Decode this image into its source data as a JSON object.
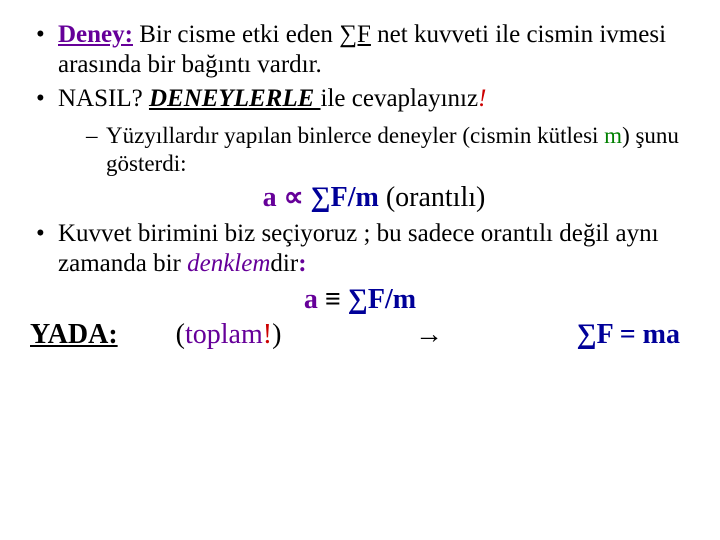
{
  "colors": {
    "purple": "#660099",
    "red": "#cc0000",
    "green": "#008000",
    "navy": "#000099",
    "black": "#000000"
  },
  "bullet1": {
    "deney_label": "Deney:",
    "part1": " Bir cisme etki eden ",
    "sigmaF": "∑F",
    "part2": " net kuvveti ile cismin ivmesi arasında bir bağıntı vardır."
  },
  "bullet2": {
    "nasil": "NASIL? ",
    "deneylerle": "DENEYLERLE ",
    "ile": "ile cevaplayınız",
    "bang": "!"
  },
  "subbullet": {
    "part1": "Yüzyıllardır yapılan binlerce deneyler ",
    "paren_open": "(cismin kütlesi ",
    "m": "m",
    "paren_close": ") ",
    "part2": "şunu gösterdi:"
  },
  "eq1": {
    "a": "a",
    "prop": " ∝ ",
    "sigmaFm": "∑F/m",
    "orantili": "   (orantılı)"
  },
  "bullet3": {
    "text1": "Kuvvet birimini biz seçiyoruz ; bu sadece orantılı değil aynı zamanda bir  ",
    "denklem": "denklem",
    "dir": "dir",
    "colon": ":"
  },
  "eq2": {
    "a": "a",
    "equiv": " ≡ ",
    "sigmaFm": "∑F/m"
  },
  "lastline": {
    "yada": "YADA:",
    "open": "(",
    "toplam": "toplam",
    "bang": "!",
    "close": ")",
    "arrow": "→",
    "sigmaF_ma": "∑F = ma"
  }
}
